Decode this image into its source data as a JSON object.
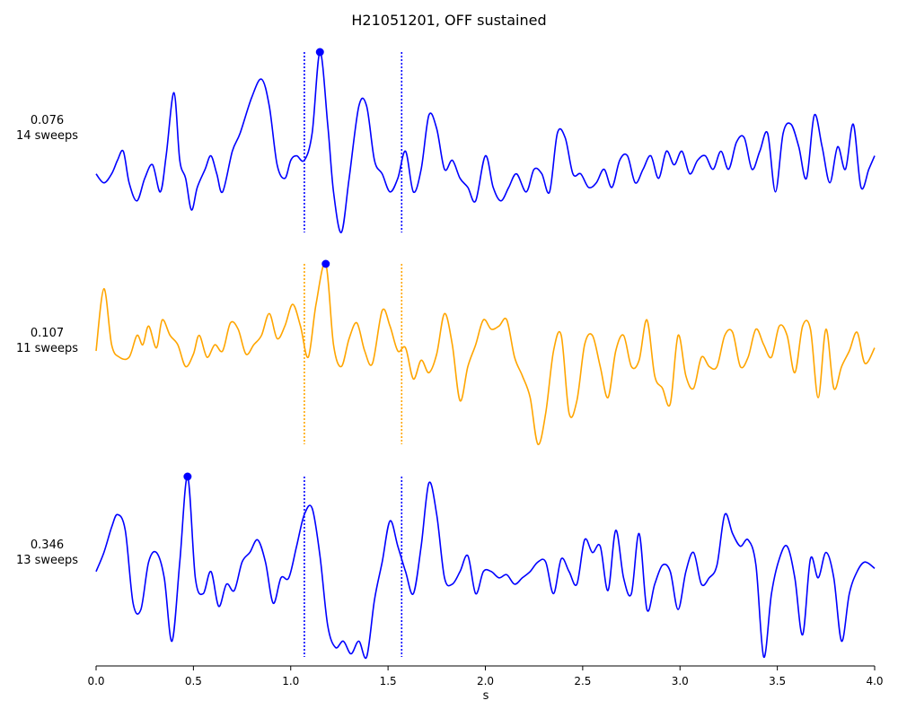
{
  "chart_data": {
    "type": "line",
    "title": "H21051201, OFF sustained",
    "xlabel": "s",
    "xlim": [
      0.0,
      4.0
    ],
    "xticks": [
      "0.0",
      "0.5",
      "1.0",
      "1.5",
      "2.0",
      "2.5",
      "3.0",
      "3.5",
      "4.0"
    ],
    "window": [
      1.07,
      1.57
    ],
    "peak_marker_color": "#0000ff",
    "series": [
      {
        "value_label": "0.076",
        "sweeps_label": "14 sweeps",
        "color": "#0000ff",
        "line_style": "dotted-blue",
        "peak_x": 1.15,
        "x": [
          0.0,
          0.04,
          0.08,
          0.11,
          0.14,
          0.17,
          0.21,
          0.25,
          0.29,
          0.33,
          0.36,
          0.4,
          0.43,
          0.46,
          0.49,
          0.52,
          0.56,
          0.59,
          0.62,
          0.65,
          0.7,
          0.74,
          0.8,
          0.85,
          0.89,
          0.93,
          0.97,
          1.0,
          1.03,
          1.07,
          1.11,
          1.15,
          1.19,
          1.22,
          1.26,
          1.3,
          1.35,
          1.39,
          1.43,
          1.47,
          1.51,
          1.55,
          1.59,
          1.63,
          1.67,
          1.71,
          1.75,
          1.79,
          1.83,
          1.87,
          1.91,
          1.95,
          2.0,
          2.04,
          2.08,
          2.12,
          2.16,
          2.21,
          2.25,
          2.29,
          2.33,
          2.37,
          2.41,
          2.45,
          2.49,
          2.53,
          2.57,
          2.61,
          2.65,
          2.69,
          2.73,
          2.77,
          2.81,
          2.85,
          2.89,
          2.93,
          2.97,
          3.01,
          3.05,
          3.09,
          3.13,
          3.17,
          3.21,
          3.25,
          3.29,
          3.33,
          3.37,
          3.41,
          3.45,
          3.49,
          3.53,
          3.57,
          3.61,
          3.65,
          3.69,
          3.73,
          3.77,
          3.81,
          3.85,
          3.89,
          3.93,
          3.97,
          4.0
        ],
        "y": [
          0.09,
          0.07,
          0.09,
          0.12,
          0.14,
          0.07,
          0.03,
          0.08,
          0.11,
          0.05,
          0.13,
          0.27,
          0.12,
          0.08,
          0.01,
          0.06,
          0.1,
          0.13,
          0.09,
          0.05,
          0.14,
          0.18,
          0.26,
          0.3,
          0.24,
          0.11,
          0.08,
          0.12,
          0.13,
          0.12,
          0.18,
          0.36,
          0.2,
          0.05,
          -0.04,
          0.08,
          0.24,
          0.24,
          0.12,
          0.09,
          0.05,
          0.08,
          0.14,
          0.05,
          0.1,
          0.22,
          0.19,
          0.1,
          0.12,
          0.08,
          0.06,
          0.03,
          0.13,
          0.06,
          0.03,
          0.06,
          0.09,
          0.05,
          0.1,
          0.09,
          0.05,
          0.18,
          0.17,
          0.09,
          0.09,
          0.06,
          0.07,
          0.1,
          0.06,
          0.12,
          0.13,
          0.07,
          0.1,
          0.13,
          0.08,
          0.14,
          0.11,
          0.14,
          0.09,
          0.12,
          0.13,
          0.1,
          0.14,
          0.1,
          0.16,
          0.17,
          0.1,
          0.14,
          0.18,
          0.05,
          0.18,
          0.2,
          0.15,
          0.08,
          0.22,
          0.15,
          0.07,
          0.15,
          0.1,
          0.2,
          0.06,
          0.1,
          0.13
        ]
      },
      {
        "value_label": "0.107",
        "sweeps_label": "11 sweeps",
        "color": "#ffa500",
        "line_style": "dotted-orange",
        "peak_x": 1.18,
        "x": [
          0.0,
          0.04,
          0.08,
          0.12,
          0.17,
          0.21,
          0.24,
          0.27,
          0.31,
          0.34,
          0.38,
          0.42,
          0.46,
          0.5,
          0.53,
          0.57,
          0.61,
          0.65,
          0.69,
          0.73,
          0.77,
          0.81,
          0.85,
          0.89,
          0.93,
          0.97,
          1.01,
          1.05,
          1.09,
          1.13,
          1.18,
          1.22,
          1.26,
          1.3,
          1.34,
          1.38,
          1.42,
          1.47,
          1.51,
          1.55,
          1.59,
          1.63,
          1.67,
          1.71,
          1.75,
          1.79,
          1.83,
          1.87,
          1.91,
          1.95,
          1.99,
          2.03,
          2.07,
          2.11,
          2.15,
          2.19,
          2.23,
          2.27,
          2.31,
          2.35,
          2.39,
          2.43,
          2.47,
          2.51,
          2.55,
          2.59,
          2.63,
          2.67,
          2.71,
          2.75,
          2.79,
          2.83,
          2.87,
          2.91,
          2.95,
          2.99,
          3.03,
          3.07,
          3.11,
          3.15,
          3.19,
          3.23,
          3.27,
          3.31,
          3.35,
          3.39,
          3.43,
          3.47,
          3.51,
          3.55,
          3.59,
          3.63,
          3.67,
          3.71,
          3.75,
          3.79,
          3.83,
          3.87,
          3.91,
          3.95,
          4.0
        ],
        "y": [
          0.1,
          0.3,
          0.12,
          0.08,
          0.08,
          0.15,
          0.12,
          0.18,
          0.11,
          0.2,
          0.15,
          0.12,
          0.05,
          0.09,
          0.15,
          0.08,
          0.12,
          0.1,
          0.19,
          0.17,
          0.09,
          0.12,
          0.15,
          0.22,
          0.14,
          0.18,
          0.25,
          0.18,
          0.08,
          0.25,
          0.38,
          0.12,
          0.05,
          0.14,
          0.19,
          0.1,
          0.06,
          0.23,
          0.18,
          0.1,
          0.11,
          0.01,
          0.07,
          0.03,
          0.09,
          0.22,
          0.12,
          -0.06,
          0.05,
          0.12,
          0.2,
          0.17,
          0.18,
          0.2,
          0.08,
          0.02,
          -0.05,
          -0.2,
          -0.1,
          0.1,
          0.15,
          -0.1,
          -0.06,
          0.12,
          0.15,
          0.05,
          -0.05,
          0.1,
          0.15,
          0.05,
          0.07,
          0.2,
          0.02,
          -0.02,
          -0.07,
          0.15,
          0.02,
          -0.02,
          0.08,
          0.05,
          0.05,
          0.15,
          0.16,
          0.05,
          0.08,
          0.17,
          0.12,
          0.08,
          0.18,
          0.15,
          0.03,
          0.18,
          0.17,
          -0.05,
          0.17,
          -0.02,
          0.05,
          0.1,
          0.16,
          0.06,
          0.11
        ]
      },
      {
        "value_label": "0.346",
        "sweeps_label": "13 sweeps",
        "color": "#0000ff",
        "line_style": "dotted-blue",
        "peak_x": 0.47,
        "x": [
          0.0,
          0.04,
          0.08,
          0.11,
          0.15,
          0.19,
          0.23,
          0.27,
          0.31,
          0.35,
          0.39,
          0.43,
          0.47,
          0.51,
          0.55,
          0.59,
          0.63,
          0.67,
          0.71,
          0.75,
          0.79,
          0.83,
          0.87,
          0.91,
          0.95,
          0.99,
          1.03,
          1.07,
          1.11,
          1.15,
          1.19,
          1.23,
          1.27,
          1.31,
          1.35,
          1.39,
          1.43,
          1.47,
          1.51,
          1.55,
          1.59,
          1.63,
          1.67,
          1.71,
          1.75,
          1.79,
          1.83,
          1.87,
          1.91,
          1.95,
          1.99,
          2.03,
          2.07,
          2.11,
          2.15,
          2.19,
          2.23,
          2.27,
          2.31,
          2.35,
          2.39,
          2.43,
          2.47,
          2.51,
          2.55,
          2.59,
          2.63,
          2.67,
          2.71,
          2.75,
          2.79,
          2.83,
          2.87,
          2.91,
          2.95,
          2.99,
          3.03,
          3.07,
          3.11,
          3.15,
          3.19,
          3.23,
          3.27,
          3.31,
          3.35,
          3.39,
          3.43,
          3.47,
          3.51,
          3.55,
          3.59,
          3.63,
          3.67,
          3.71,
          3.75,
          3.79,
          3.83,
          3.87,
          3.91,
          3.95,
          4.0
        ],
        "y": [
          0.12,
          0.18,
          0.26,
          0.3,
          0.25,
          0.02,
          0.0,
          0.15,
          0.18,
          0.1,
          -0.1,
          0.15,
          0.42,
          0.1,
          0.05,
          0.12,
          0.01,
          0.08,
          0.06,
          0.15,
          0.18,
          0.22,
          0.15,
          0.02,
          0.1,
          0.1,
          0.2,
          0.3,
          0.32,
          0.17,
          -0.05,
          -0.12,
          -0.1,
          -0.14,
          -0.1,
          -0.15,
          0.03,
          0.15,
          0.28,
          0.2,
          0.12,
          0.05,
          0.2,
          0.4,
          0.3,
          0.1,
          0.08,
          0.12,
          0.17,
          0.05,
          0.12,
          0.12,
          0.1,
          0.11,
          0.08,
          0.1,
          0.12,
          0.15,
          0.15,
          0.05,
          0.16,
          0.12,
          0.08,
          0.22,
          0.18,
          0.2,
          0.06,
          0.25,
          0.1,
          0.05,
          0.24,
          0.0,
          0.08,
          0.14,
          0.12,
          0.0,
          0.12,
          0.18,
          0.08,
          0.1,
          0.14,
          0.3,
          0.24,
          0.2,
          0.22,
          0.14,
          -0.15,
          0.05,
          0.16,
          0.2,
          0.1,
          -0.08,
          0.16,
          0.1,
          0.18,
          0.1,
          -0.1,
          0.05,
          0.12,
          0.15,
          0.13
        ]
      }
    ]
  }
}
